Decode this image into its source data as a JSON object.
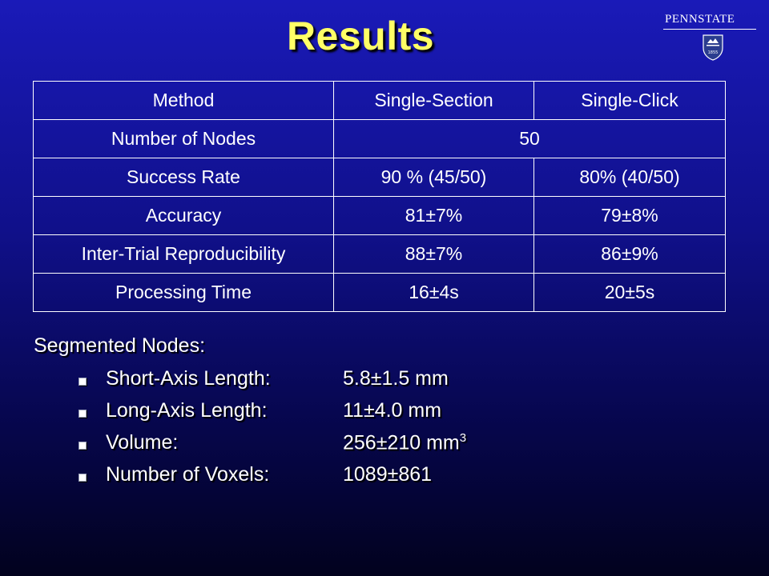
{
  "slide": {
    "title": "Results",
    "logo_text": "PENNSTATE",
    "logo_year": "1855"
  },
  "table": {
    "header": [
      "Method",
      "Single-Section",
      "Single-Click"
    ],
    "rows": [
      {
        "label": "Number of Nodes",
        "merged": "50"
      },
      {
        "label": "Success Rate",
        "single_section": "90 % (45/50)",
        "single_click": "80% (40/50)"
      },
      {
        "label": "Accuracy",
        "single_section": "81±7%",
        "single_click": "79±8%"
      },
      {
        "label": "Inter-Trial Reproducibility",
        "single_section": "88±7%",
        "single_click": "86±9%"
      },
      {
        "label": "Processing Time",
        "single_section": "16±4s",
        "single_click": "20±5s"
      }
    ]
  },
  "segmented": {
    "title": "Segmented Nodes:",
    "items": [
      {
        "label": "Short-Axis Length:",
        "value": "5.8±1.5 mm"
      },
      {
        "label": "Long-Axis Length:",
        "value": "11±4.0 mm"
      },
      {
        "label": "Volume:",
        "value": "256±210 mm",
        "superscript": "3"
      },
      {
        "label": "Number of Voxels:",
        "value": "1089±861"
      }
    ]
  },
  "colors": {
    "title": "#ffff66",
    "background_top": "#1a1ab8",
    "background_bottom": "#02021e",
    "text": "#ffffff"
  },
  "icons": [
    "pennstate-shield-icon",
    "square-bullet-icon"
  ]
}
